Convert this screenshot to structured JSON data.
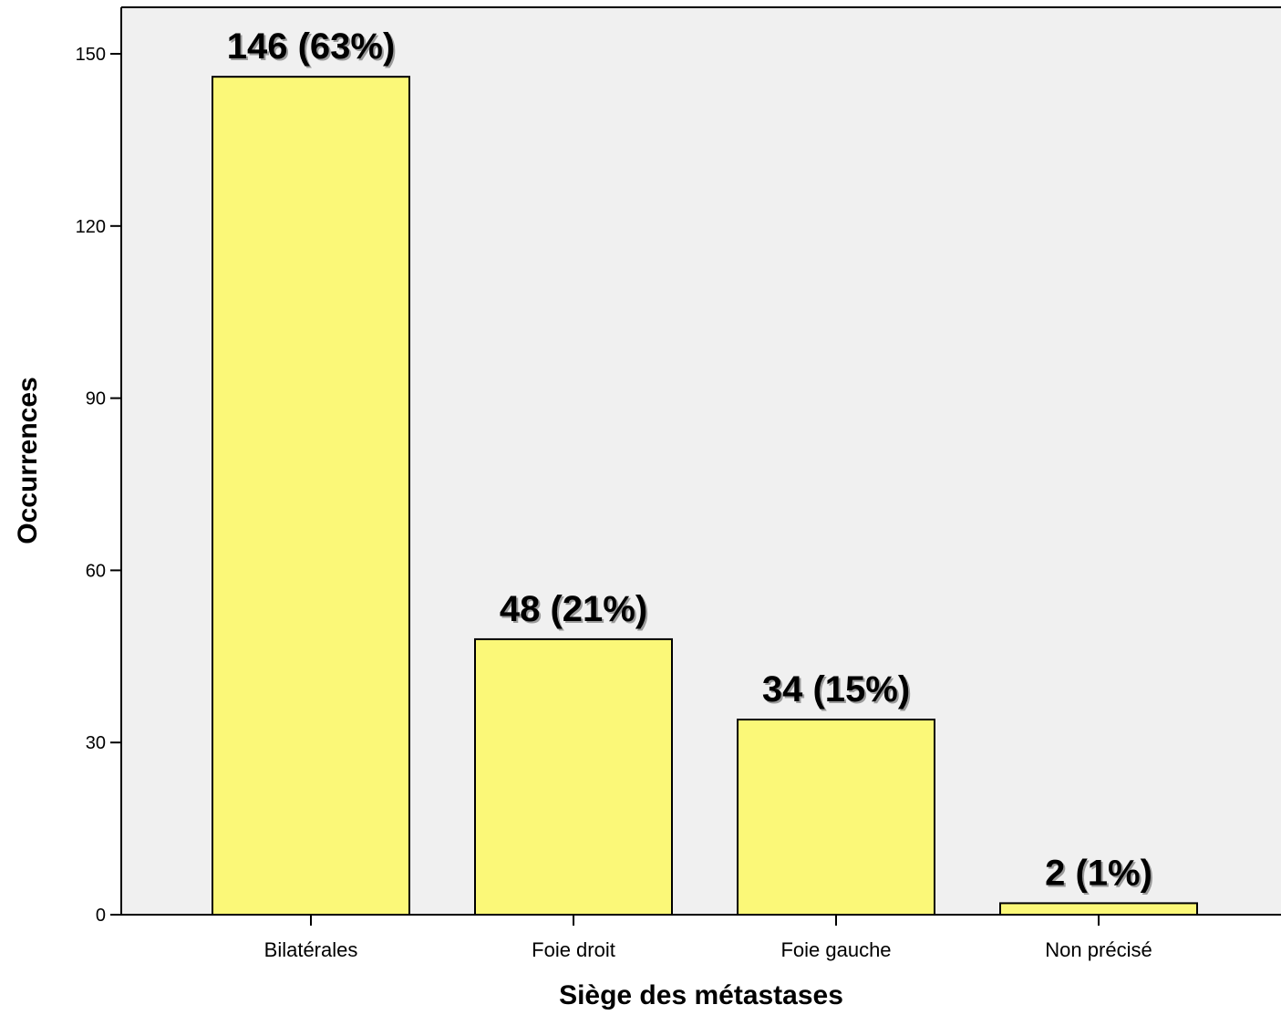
{
  "chart_data": {
    "type": "bar",
    "categories": [
      "Bilatérales",
      "Foie droit",
      "Foie gauche",
      "Non précisé"
    ],
    "values": [
      146,
      48,
      34,
      2
    ],
    "data_labels": [
      "146 (63%)",
      "48 (21%)",
      "34 (15%)",
      "2 (1%)"
    ],
    "xlabel": "Siège des métastases",
    "ylabel": "Occurrences",
    "ylim": [
      0,
      158
    ],
    "yticks": [
      0,
      30,
      60,
      90,
      120,
      150
    ],
    "grid": false,
    "colors": {
      "plot_background": "#f0f0f0",
      "bar_fill": "#fbf878",
      "bar_stroke": "#000000"
    }
  }
}
